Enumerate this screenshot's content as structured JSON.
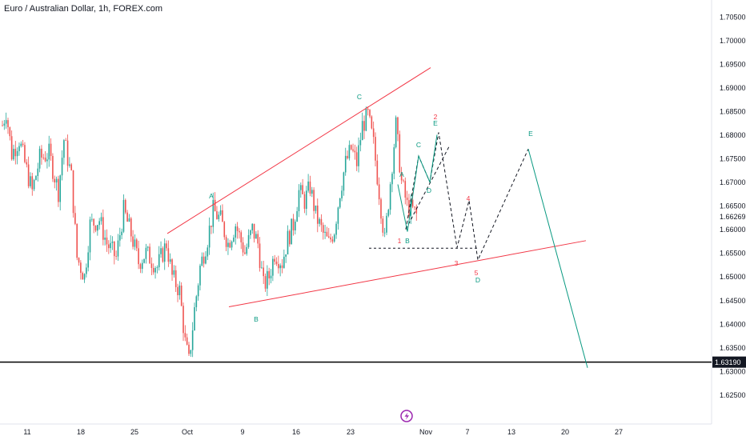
{
  "header": {
    "title": "Euro / Australian Dollar, 1h, FOREX.com"
  },
  "colors": {
    "up_candle": "#26a69a",
    "down_candle": "#ef5350",
    "trendline": "#f23645",
    "green_path": "#089981",
    "label_red": "#f23645",
    "label_green": "#089981",
    "level_line": "#000000",
    "logo": "#9c27b0"
  },
  "icons": {
    "logo": "lightning-bolt-icon"
  },
  "chart_data": {
    "type": "candlestick",
    "x_axis_labels": [
      "11",
      "18",
      "25",
      "Oct",
      "9",
      "16",
      "23",
      "Nov",
      "7",
      "13",
      "20",
      "27"
    ],
    "y_axis": {
      "ticks": [
        "1.70500",
        "1.70000",
        "1.69500",
        "1.69000",
        "1.68500",
        "1.68000",
        "1.67500",
        "1.67000",
        "1.66500",
        "1.66269",
        "1.66000",
        "1.65500",
        "1.65000",
        "1.64500",
        "1.64000",
        "1.63500",
        "1.63190",
        "1.63000",
        "1.62500"
      ],
      "range": [
        1.6205,
        1.7075
      ],
      "current_price": "1.66269",
      "highlighted_level": "1.63190"
    },
    "price_path": [
      [
        0,
        1.682
      ],
      [
        2,
        1.685
      ],
      [
        5,
        1.676
      ],
      [
        9,
        1.679
      ],
      [
        12,
        1.674
      ],
      [
        16,
        1.668
      ],
      [
        20,
        1.675
      ],
      [
        25,
        1.676
      ],
      [
        30,
        1.668
      ],
      [
        33,
        1.679
      ],
      [
        37,
        1.671
      ],
      [
        40,
        1.654
      ],
      [
        44,
        1.65
      ],
      [
        47,
        1.661
      ],
      [
        52,
        1.662
      ],
      [
        56,
        1.657
      ],
      [
        61,
        1.654
      ],
      [
        65,
        1.664
      ],
      [
        69,
        1.659
      ],
      [
        73,
        1.653
      ],
      [
        77,
        1.655
      ],
      [
        83,
        1.652
      ],
      [
        88,
        1.657
      ],
      [
        91,
        1.65
      ],
      [
        95,
        1.647
      ],
      [
        98,
        1.636
      ],
      [
        100,
        1.6319
      ],
      [
        103,
        1.643
      ],
      [
        106,
        1.652
      ],
      [
        110,
        1.658
      ],
      [
        113,
        1.664
      ],
      [
        117,
        1.662
      ],
      [
        121,
        1.657
      ],
      [
        125,
        1.661
      ],
      [
        130,
        1.655
      ],
      [
        134,
        1.66
      ],
      [
        137,
        1.657
      ],
      [
        140,
        1.648
      ],
      [
        143,
        1.65
      ],
      [
        146,
        1.655
      ],
      [
        150,
        1.653
      ],
      [
        153,
        1.658
      ],
      [
        156,
        1.661
      ],
      [
        159,
        1.668
      ],
      [
        162,
        1.666
      ],
      [
        165,
        1.669
      ],
      [
        168,
        1.663
      ],
      [
        172,
        1.659
      ],
      [
        175,
        1.657
      ],
      [
        178,
        1.66
      ],
      [
        181,
        1.668
      ],
      [
        184,
        1.674
      ],
      [
        187,
        1.677
      ],
      [
        190,
        1.674
      ],
      [
        193,
        1.682
      ],
      [
        196,
        1.684
      ],
      [
        199,
        1.678
      ],
      [
        202,
        1.668
      ],
      [
        205,
        1.6575
      ],
      [
        208,
        1.67
      ],
      [
        211,
        1.682
      ],
      [
        214,
        1.67
      ],
      [
        217,
        1.665
      ],
      [
        220,
        1.664
      ],
      [
        223,
        1.6625
      ]
    ],
    "wave_labels_green": [
      "A",
      "C",
      "B",
      "A",
      "B",
      "C",
      "E",
      "D",
      "D",
      "E"
    ],
    "wave_labels_red": [
      "2",
      "1",
      "4",
      "3",
      "5"
    ]
  }
}
